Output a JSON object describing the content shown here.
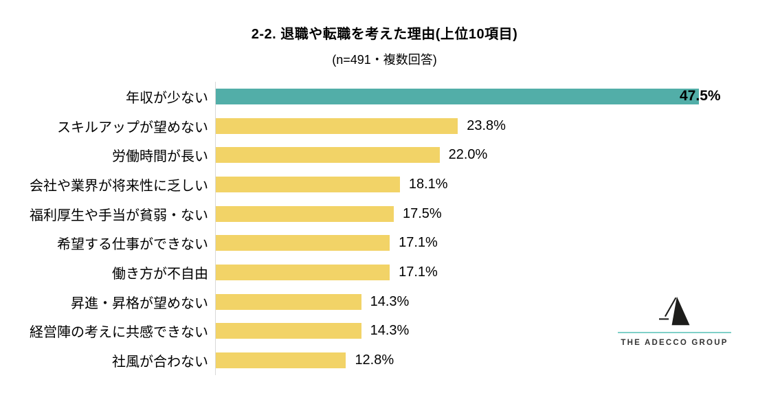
{
  "title": "2-2. 退職や転職を考えた理由(上位10項目)",
  "subtitle": "(n=491・複数回答)",
  "chart_data": {
    "type": "bar",
    "orientation": "horizontal",
    "title": "2-2. 退職や転職を考えた理由(上位10項目)",
    "subtitle": "(n=491・複数回答)",
    "categories": [
      "年収が少ない",
      "スキルアップが望めない",
      "労働時間が長い",
      "会社や業界が将来性に乏しい",
      "福利厚生や手当が貧弱・ない",
      "希望する仕事ができない",
      "働き方が不自由",
      "昇進・昇格が望めない",
      "経営陣の考えに共感できない",
      "社風が合わない"
    ],
    "values": [
      47.5,
      23.8,
      22.0,
      18.1,
      17.5,
      17.1,
      17.1,
      14.3,
      14.3,
      12.8
    ],
    "value_labels": [
      "47.5%",
      "23.8%",
      "22.0%",
      "18.1%",
      "17.5%",
      "17.1%",
      "17.1%",
      "14.3%",
      "14.3%",
      "12.8%"
    ],
    "xlabel": "",
    "ylabel": "",
    "xlim": [
      0,
      50
    ],
    "grid": false,
    "legend": false,
    "bar_color": "#f2d367",
    "highlight_color": "#52aea8",
    "highlight_index": 0,
    "axis_line_color": "#d9d9d9"
  },
  "logo": {
    "text": "THE ADECCO GROUP",
    "mark": "adecco-a-logo",
    "mark_color": "#1d1d1b",
    "line_color": "#7ed0c8",
    "text_color": "#333333"
  }
}
